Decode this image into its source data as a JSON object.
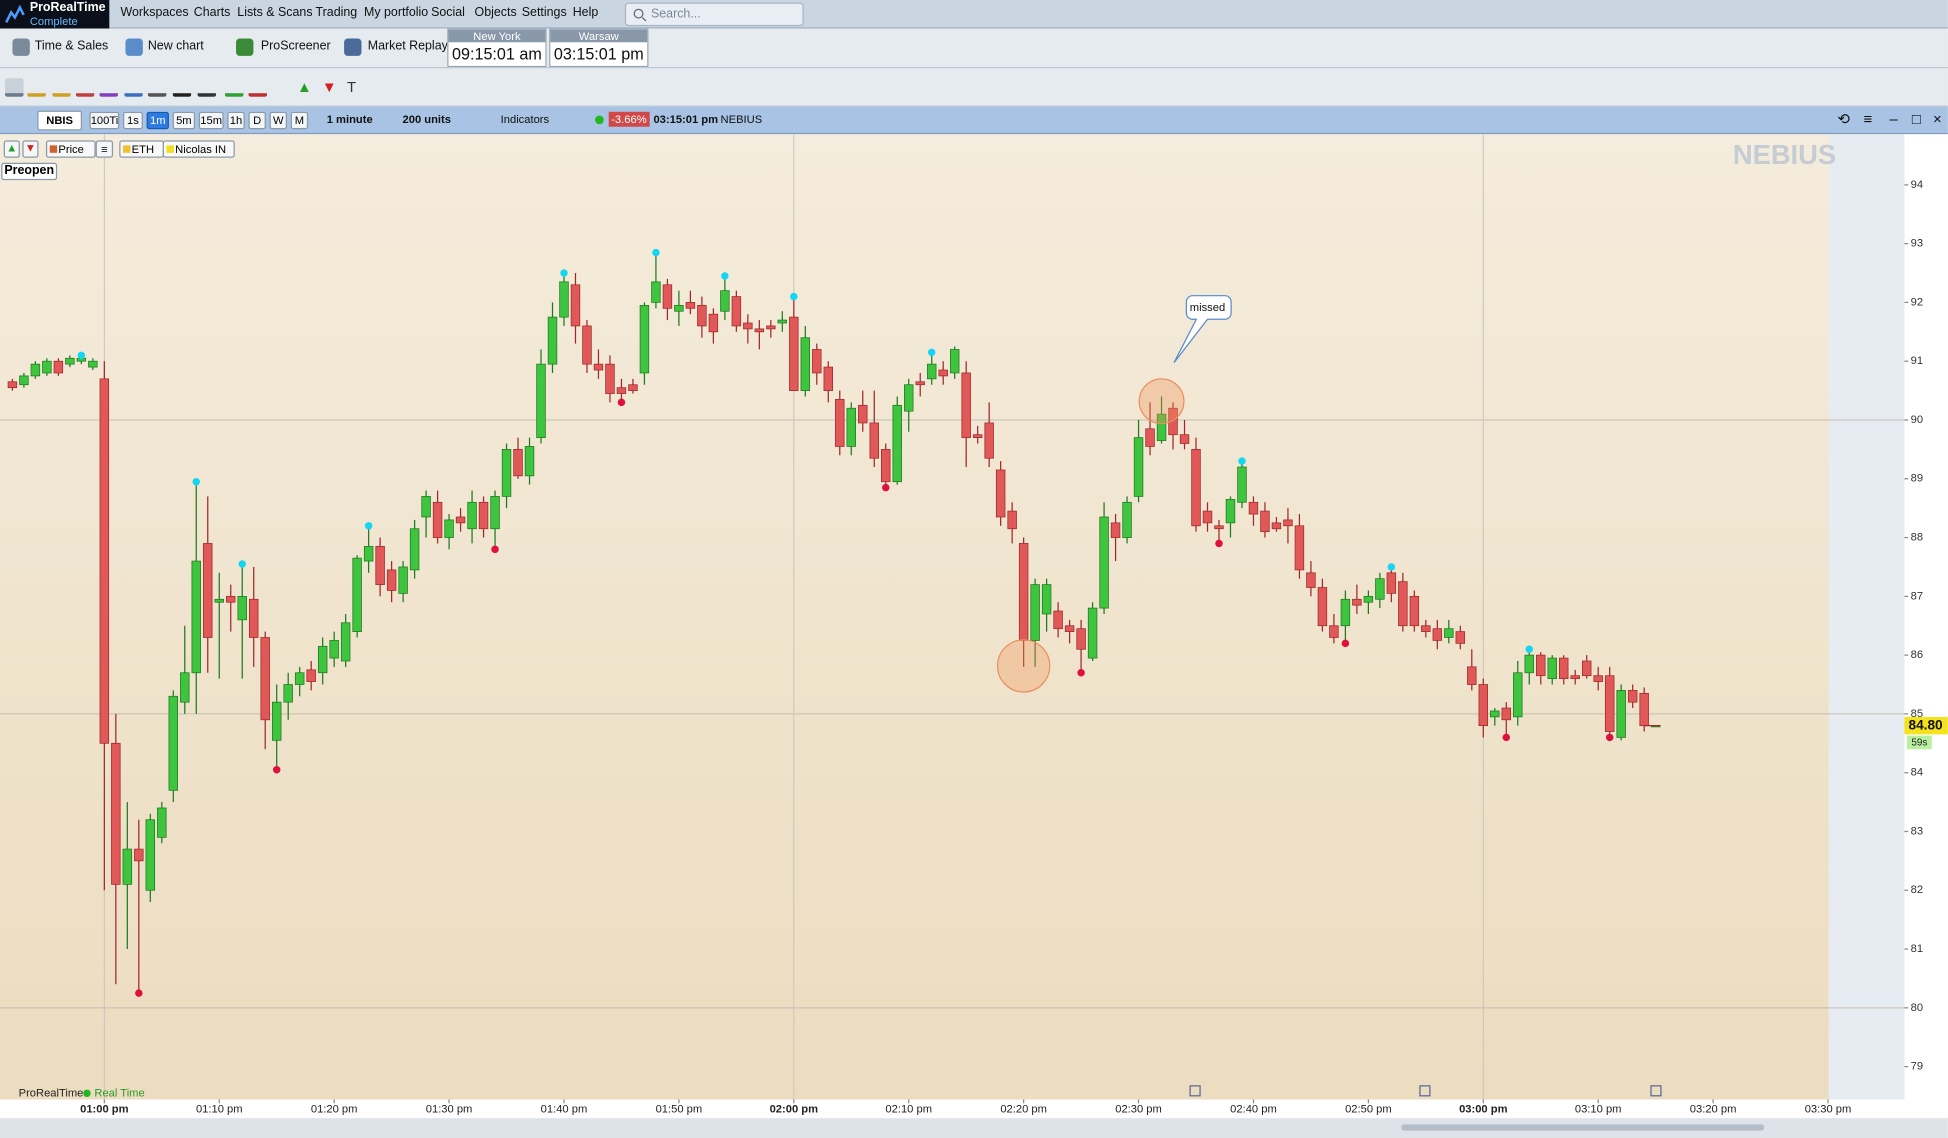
{
  "app": {
    "brand": "ProRealTime",
    "edition": "Complete",
    "menu": [
      "Workspaces",
      "Charts",
      "Lists & Scans",
      "Trading",
      "My portfolio",
      "Social",
      "Objects",
      "Settings",
      "Help"
    ],
    "search_placeholder": "Search..."
  },
  "toolbar": {
    "buttons": [
      "Time & Sales",
      "New chart",
      "ProScreener",
      "Market Replay"
    ],
    "clocks": [
      {
        "city": "New York",
        "time": "09:15:01 am"
      },
      {
        "city": "Warsaw",
        "time": "03:15:01 pm"
      }
    ]
  },
  "chart_header": {
    "ticker": "NBIS",
    "intervals": [
      "100Ti",
      "1s",
      "1m",
      "5m",
      "15m",
      "1h",
      "D",
      "W",
      "M"
    ],
    "active_interval": "1m",
    "period": "1 minute",
    "units": "200 units",
    "indicators": "Indicators",
    "change": "-3.66%",
    "time": "03:15:01 pm",
    "name": "NEBIUS"
  },
  "chips": [
    "Price",
    "ETH",
    "Nicolas IN"
  ],
  "session": "Preopen",
  "watermark": "NEBIUS",
  "status": {
    "platform": "ProRealTime",
    "feed": "Real Time"
  },
  "chart_data": {
    "type": "candlestick",
    "annotation": "missed",
    "countdown": "59s",
    "last_price": {
      "value": 84.8,
      "label": "84.80"
    },
    "xlim": [
      -9.08,
      156.65
    ],
    "ylim": [
      78.44,
      94.82
    ],
    "xticks": [
      {
        "value": 0,
        "label": "01:00 pm"
      },
      {
        "value": 10,
        "label": "01:10 pm"
      },
      {
        "value": 20,
        "label": "01:20 pm"
      },
      {
        "value": 30,
        "label": "01:30 pm"
      },
      {
        "value": 40,
        "label": "01:40 pm"
      },
      {
        "value": 50,
        "label": "01:50 pm"
      },
      {
        "value": 60,
        "label": "02:00 pm"
      },
      {
        "value": 70,
        "label": "02:10 pm"
      },
      {
        "value": 80,
        "label": "02:20 pm"
      },
      {
        "value": 90,
        "label": "02:30 pm"
      },
      {
        "value": 100,
        "label": "02:40 pm"
      },
      {
        "value": 110,
        "label": "02:50 pm"
      },
      {
        "value": 120,
        "label": "03:00 pm"
      },
      {
        "value": 130,
        "label": "03:10 pm"
      },
      {
        "value": 140,
        "label": "03:20 pm"
      },
      {
        "value": 150,
        "label": "03:30 pm"
      }
    ],
    "yticks": [
      79,
      80,
      81,
      82,
      83,
      84,
      85,
      86,
      87,
      88,
      89,
      90,
      91,
      92,
      93,
      94
    ],
    "hgrid": [
      80,
      85,
      90
    ],
    "vgrid": [
      0,
      60,
      120
    ],
    "series": [
      {
        "up_color": "#3ec43e",
        "down_color": "#e05858",
        "x": [
          -8,
          -7,
          -6,
          -5,
          -4,
          -3,
          -2,
          -1,
          0,
          1,
          2,
          3,
          4,
          5,
          6,
          7,
          8,
          9,
          10,
          11,
          12,
          13,
          14,
          15,
          16,
          17,
          18,
          19,
          20,
          21,
          22,
          23,
          24,
          25,
          26,
          27,
          28,
          29,
          30,
          31,
          32,
          33,
          34,
          35,
          36,
          37,
          38,
          39,
          40,
          41,
          42,
          43,
          44,
          45,
          46,
          47,
          48,
          49,
          50,
          51,
          52,
          53,
          54,
          55,
          56,
          57,
          58,
          59,
          60,
          61,
          62,
          63,
          64,
          65,
          66,
          67,
          68,
          69,
          70,
          71,
          72,
          73,
          74,
          75,
          76,
          77,
          78,
          79,
          80,
          81,
          82,
          83,
          84,
          85,
          86,
          87,
          88,
          89,
          90,
          91,
          92,
          93,
          94,
          95,
          96,
          97,
          98,
          99,
          100,
          101,
          102,
          103,
          104,
          105,
          106,
          107,
          108,
          109,
          110,
          111,
          112,
          113,
          114,
          115,
          116,
          117,
          118,
          119,
          120,
          121,
          122,
          123,
          124,
          125,
          126,
          127,
          128,
          129,
          130,
          131,
          132,
          133,
          134,
          135
        ],
        "open": [
          90.65,
          90.6,
          90.75,
          90.8,
          91.0,
          90.95,
          91.0,
          90.9,
          90.7,
          84.5,
          82.1,
          82.7,
          82.0,
          82.9,
          83.7,
          85.2,
          85.7,
          87.9,
          86.9,
          87.0,
          86.6,
          86.95,
          86.3,
          84.55,
          85.2,
          85.5,
          85.75,
          85.7,
          85.95,
          85.9,
          86.4,
          87.6,
          87.85,
          87.45,
          87.05,
          87.45,
          88.35,
          88.6,
          88.0,
          88.35,
          88.15,
          88.6,
          88.15,
          88.7,
          89.5,
          89.05,
          89.7,
          90.95,
          91.75,
          92.3,
          91.6,
          90.95,
          90.95,
          90.55,
          90.6,
          90.8,
          92.0,
          92.3,
          91.85,
          92.0,
          91.95,
          91.8,
          91.85,
          92.1,
          91.65,
          91.55,
          91.6,
          91.65,
          91.75,
          90.5,
          91.2,
          90.9,
          90.35,
          89.55,
          90.25,
          89.95,
          89.5,
          88.95,
          90.15,
          90.65,
          90.7,
          90.85,
          90.8,
          90.8,
          89.75,
          89.95,
          89.15,
          88.45,
          87.9,
          86.25,
          86.7,
          86.75,
          86.5,
          86.45,
          85.95,
          86.8,
          88.25,
          88.0,
          88.7,
          89.85,
          89.65,
          90.2,
          89.75,
          89.5,
          88.45,
          88.2,
          88.25,
          88.6,
          88.6,
          88.45,
          88.25,
          88.3,
          88.2,
          87.4,
          87.15,
          86.5,
          86.5,
          86.95,
          86.9,
          86.95,
          87.4,
          87.25,
          87.0,
          86.5,
          86.45,
          86.3,
          86.4,
          85.8,
          85.5,
          84.95,
          85.1,
          84.95,
          85.7,
          86.0,
          85.6,
          85.95,
          85.65,
          85.9,
          85.65,
          85.65,
          84.6,
          85.4,
          85.35,
          84.8
        ],
        "high": [
          90.7,
          90.8,
          91.0,
          91.05,
          91.05,
          91.1,
          91.1,
          91.05,
          91.0,
          85.0,
          83.5,
          83.2,
          83.3,
          83.5,
          85.4,
          86.5,
          88.95,
          88.7,
          87.4,
          87.2,
          87.55,
          87.5,
          86.4,
          85.5,
          85.7,
          85.8,
          85.9,
          86.3,
          86.4,
          86.7,
          87.7,
          88.2,
          88.0,
          87.6,
          87.6,
          88.3,
          88.8,
          88.8,
          88.4,
          88.5,
          88.8,
          88.7,
          88.8,
          89.6,
          89.7,
          89.7,
          91.2,
          92.0,
          92.5,
          92.5,
          91.7,
          91.2,
          91.1,
          90.7,
          90.7,
          92.0,
          92.85,
          92.4,
          92.2,
          92.2,
          92.1,
          91.9,
          92.45,
          92.2,
          91.8,
          91.7,
          91.7,
          91.85,
          92.1,
          91.6,
          91.3,
          91.0,
          90.5,
          90.3,
          90.5,
          90.5,
          89.6,
          90.4,
          90.7,
          90.8,
          91.15,
          91.0,
          91.25,
          91.0,
          89.9,
          90.3,
          89.3,
          88.6,
          88.0,
          87.3,
          87.3,
          86.9,
          86.6,
          86.6,
          86.9,
          88.6,
          88.4,
          88.7,
          90.0,
          90.3,
          90.4,
          90.3,
          90.0,
          89.7,
          88.6,
          88.3,
          88.7,
          89.3,
          88.7,
          88.6,
          88.35,
          88.5,
          88.4,
          87.6,
          87.3,
          86.7,
          87.1,
          87.2,
          87.1,
          87.4,
          87.5,
          87.4,
          87.1,
          86.6,
          86.6,
          86.6,
          86.5,
          86.1,
          85.6,
          85.1,
          85.2,
          85.9,
          86.1,
          86.05,
          86.0,
          86.0,
          85.75,
          86.0,
          85.8,
          85.8,
          85.5,
          85.5,
          85.45,
          84.8
        ],
        "low": [
          90.5,
          90.55,
          90.7,
          90.75,
          90.75,
          90.9,
          90.95,
          90.85,
          82.0,
          80.4,
          81.0,
          80.25,
          81.8,
          82.8,
          83.5,
          85.0,
          85.0,
          85.7,
          85.6,
          86.4,
          85.6,
          85.8,
          84.4,
          84.05,
          84.9,
          85.3,
          85.4,
          85.5,
          85.8,
          85.8,
          86.3,
          87.4,
          87.0,
          86.9,
          86.9,
          87.3,
          88.0,
          87.9,
          87.8,
          88.1,
          87.9,
          88.0,
          87.8,
          88.5,
          89.0,
          88.9,
          89.6,
          90.8,
          91.6,
          91.3,
          90.8,
          90.7,
          90.3,
          90.3,
          90.45,
          90.6,
          91.9,
          91.7,
          91.6,
          91.8,
          91.4,
          91.3,
          91.7,
          91.5,
          91.3,
          91.2,
          91.4,
          91.5,
          90.5,
          90.4,
          90.6,
          90.3,
          89.4,
          89.4,
          89.8,
          89.2,
          88.85,
          88.9,
          89.8,
          90.4,
          90.6,
          90.6,
          90.7,
          89.2,
          89.6,
          89.2,
          88.2,
          87.9,
          85.8,
          85.8,
          86.4,
          86.3,
          86.2,
          85.7,
          85.9,
          86.7,
          87.6,
          87.9,
          88.6,
          89.4,
          89.6,
          89.5,
          89.5,
          88.1,
          88.1,
          87.9,
          88.0,
          88.5,
          88.2,
          88.0,
          88.1,
          87.9,
          87.3,
          87.0,
          86.4,
          86.2,
          86.2,
          86.7,
          86.7,
          86.8,
          86.9,
          86.4,
          86.4,
          86.3,
          86.1,
          86.2,
          86.1,
          85.4,
          84.6,
          84.8,
          84.6,
          84.8,
          85.5,
          85.5,
          85.5,
          85.5,
          85.5,
          85.6,
          85.4,
          84.6,
          84.55,
          85.1,
          84.7,
          84.8
        ],
        "close": [
          90.55,
          90.75,
          90.95,
          91.0,
          90.8,
          91.05,
          91.05,
          91.0,
          84.5,
          82.1,
          82.7,
          82.5,
          83.2,
          83.4,
          85.3,
          85.7,
          87.6,
          86.3,
          86.95,
          86.9,
          87.0,
          86.3,
          84.9,
          85.2,
          85.5,
          85.7,
          85.55,
          86.15,
          86.25,
          86.55,
          87.65,
          87.85,
          87.2,
          87.1,
          87.5,
          88.15,
          88.7,
          88.0,
          88.3,
          88.25,
          88.6,
          88.15,
          88.7,
          89.5,
          89.05,
          89.55,
          90.95,
          91.75,
          92.35,
          91.6,
          90.95,
          90.85,
          90.45,
          90.45,
          90.5,
          91.95,
          92.35,
          91.9,
          91.95,
          91.9,
          91.6,
          91.5,
          92.2,
          91.6,
          91.55,
          91.5,
          91.55,
          91.7,
          90.5,
          91.4,
          90.8,
          90.5,
          89.55,
          90.2,
          89.95,
          89.35,
          88.95,
          90.25,
          90.6,
          90.6,
          90.95,
          90.75,
          91.2,
          89.7,
          89.7,
          89.35,
          88.35,
          88.15,
          86.25,
          87.2,
          87.2,
          86.45,
          86.4,
          86.1,
          86.8,
          88.35,
          88.0,
          88.6,
          89.7,
          89.55,
          90.1,
          89.75,
          89.6,
          88.2,
          88.25,
          88.15,
          88.65,
          89.2,
          88.4,
          88.1,
          88.15,
          88.2,
          87.45,
          87.15,
          86.5,
          86.3,
          86.95,
          86.85,
          87.0,
          87.3,
          87.05,
          86.5,
          86.5,
          86.4,
          86.25,
          86.45,
          86.2,
          85.5,
          84.8,
          85.05,
          84.9,
          85.7,
          86.0,
          85.65,
          85.95,
          85.6,
          85.6,
          85.65,
          85.55,
          84.7,
          85.4,
          85.2,
          84.8,
          84.8
        ]
      }
    ],
    "markers": [
      {
        "color": "#12d6f2",
        "x": [
          -2,
          8,
          12,
          23,
          40,
          48,
          54,
          60,
          72,
          99,
          112,
          124
        ],
        "y": [
          91.1,
          88.95,
          87.55,
          88.2,
          92.5,
          92.85,
          92.45,
          92.1,
          91.15,
          89.3,
          87.5,
          86.1
        ]
      },
      {
        "color": "#e0103e",
        "x": [
          3,
          15,
          34,
          45,
          68,
          85,
          97,
          108,
          122,
          131
        ],
        "y": [
          80.25,
          84.05,
          87.8,
          90.3,
          88.85,
          85.7,
          87.9,
          86.2,
          84.6,
          84.6
        ]
      }
    ]
  }
}
